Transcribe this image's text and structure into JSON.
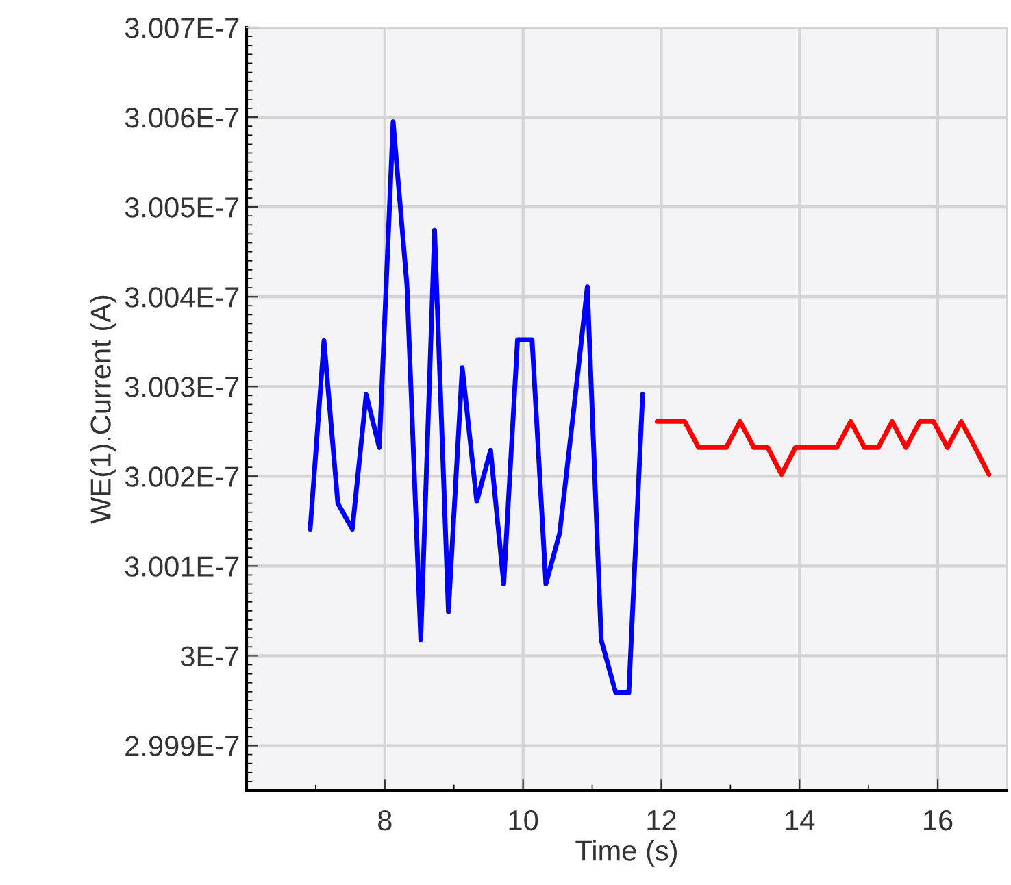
{
  "chart_data": {
    "type": "line",
    "xlabel": "Time (s)",
    "ylabel": "WE(1).Current (A)",
    "xlim": [
      6,
      17
    ],
    "xticks": [
      8,
      10,
      12,
      14,
      16
    ],
    "ylim": [
      2.9985e-07,
      3.007e-07
    ],
    "yticks": [
      {
        "value": 2.999e-07,
        "label": "2.999E-7"
      },
      {
        "value": 3e-07,
        "label": "3E-7"
      },
      {
        "value": 3.001e-07,
        "label": "3.001E-7"
      },
      {
        "value": 3.002e-07,
        "label": "3.002E-7"
      },
      {
        "value": 3.003e-07,
        "label": "3.003E-7"
      },
      {
        "value": 3.004e-07,
        "label": "3.004E-7"
      },
      {
        "value": 3.005e-07,
        "label": "3.005E-7"
      },
      {
        "value": 3.006e-07,
        "label": "3.006E-7"
      },
      {
        "value": 3.007e-07,
        "label": "3.007E-7"
      }
    ],
    "grid": true,
    "marker": "none",
    "line_style": "solid",
    "series": [
      {
        "color": "#0000ff",
        "x": [
          6.92,
          7.12,
          7.32,
          7.53,
          7.73,
          7.92,
          8.12,
          8.32,
          8.52,
          8.72,
          8.92,
          9.12,
          9.33,
          9.53,
          9.72,
          9.92,
          10.13,
          10.33,
          10.53,
          10.73,
          10.93,
          11.13,
          11.34,
          11.53,
          11.73
        ],
        "values": [
          3.00141e-07,
          3.00351e-07,
          3.0017e-07,
          3.00141e-07,
          3.00291e-07,
          3.00232e-07,
          3.00595e-07,
          3.00413e-07,
          3.00018e-07,
          3.00474e-07,
          3.00049e-07,
          3.00321e-07,
          3.00172e-07,
          3.00229e-07,
          3.0008e-07,
          3.00352e-07,
          3.00352e-07,
          3.0008e-07,
          3.00137e-07,
          3.00272e-07,
          3.00411e-07,
          3.00018e-07,
          2.99959e-07,
          2.99959e-07,
          3.00291e-07
        ]
      },
      {
        "color": "#ff0000",
        "x": [
          11.94,
          12.14,
          12.34,
          12.54,
          12.74,
          12.94,
          13.14,
          13.34,
          13.54,
          13.74,
          13.94,
          14.14,
          14.34,
          14.54,
          14.74,
          14.94,
          15.14,
          15.34,
          15.54,
          15.74,
          15.94,
          16.14,
          16.34,
          16.54,
          16.74
        ],
        "values": [
          3.00261e-07,
          3.00261e-07,
          3.00261e-07,
          3.00232e-07,
          3.00232e-07,
          3.00232e-07,
          3.00261e-07,
          3.00232e-07,
          3.00232e-07,
          3.00202e-07,
          3.00232e-07,
          3.00232e-07,
          3.00232e-07,
          3.00232e-07,
          3.00261e-07,
          3.00232e-07,
          3.00232e-07,
          3.00261e-07,
          3.00232e-07,
          3.00261e-07,
          3.00261e-07,
          3.00232e-07,
          3.00261e-07,
          3.00232e-07,
          3.00202e-07
        ]
      }
    ]
  }
}
